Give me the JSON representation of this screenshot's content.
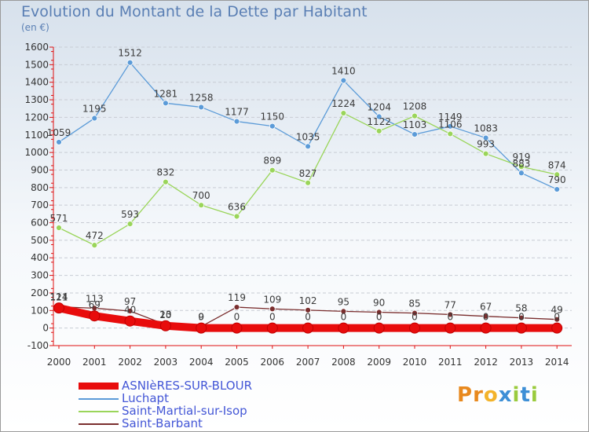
{
  "header": {
    "title": "Evolution du Montant de la Dette par Habitant",
    "subtitle": "(en €)"
  },
  "logo": {
    "letters": [
      "P",
      "r",
      "o",
      "x",
      "i",
      "t",
      "i"
    ],
    "colors": [
      "#e8891e",
      "#e8891e",
      "#f3b32a",
      "#3d8fd6",
      "#9acb3d",
      "#3d8fd6",
      "#9acb3d"
    ]
  },
  "chart_data": {
    "type": "line",
    "title": "Evolution du Montant de la Dette par Habitant",
    "ylabel": "(en €)",
    "xlabel": "",
    "ylim": [
      -100,
      1600
    ],
    "yticks": [
      -100,
      0,
      100,
      200,
      300,
      400,
      500,
      600,
      700,
      800,
      900,
      1000,
      1100,
      1200,
      1300,
      1400,
      1500,
      1600
    ],
    "categories": [
      "2000",
      "2001",
      "2002",
      "2003",
      "2004",
      "2005",
      "2006",
      "2007",
      "2008",
      "2009",
      "2010",
      "2011",
      "2012",
      "2013",
      "2014"
    ],
    "grid": "horizontal dashed",
    "legend_position": "bottom-left",
    "series": [
      {
        "name": "ASNIèRES-SUR-BLOUR",
        "values": [
          114,
          69,
          40,
          13,
          0,
          0,
          0,
          0,
          0,
          0,
          0,
          0,
          0,
          0,
          0
        ],
        "labels": [
          "114",
          "69",
          "40",
          "13",
          "0",
          "0",
          "0",
          "0",
          "0",
          "0",
          "0",
          "0",
          "0",
          "0",
          "0"
        ],
        "color": "#e80c0c"
      },
      {
        "name": "Luchapt",
        "values": [
          1059,
          1195,
          1512,
          1281,
          1258,
          1177,
          1150,
          1035,
          1410,
          1204,
          1103,
          1149,
          1083,
          883,
          790
        ],
        "labels": [
          "1059",
          "1195",
          "1512",
          "1281",
          "1258",
          "1177",
          "1150",
          "1035",
          "1410",
          "1204",
          "1103",
          "1149",
          "1083",
          "883",
          "790"
        ],
        "color": "#5b9bd8"
      },
      {
        "name": "Saint-Martial-sur-Isop",
        "values": [
          571,
          472,
          593,
          832,
          700,
          636,
          899,
          827,
          1224,
          1122,
          1208,
          1106,
          993,
          919,
          874
        ],
        "labels": [
          "571",
          "472",
          "593",
          "832",
          "700",
          "636",
          "899",
          "827",
          "1224",
          "1122",
          "1208",
          "1106",
          "993",
          "919",
          "874"
        ],
        "color": "#9ad55a"
      },
      {
        "name": "Saint-Barbant",
        "values": [
          121,
          113,
          97,
          20,
          9,
          119,
          109,
          102,
          95,
          90,
          85,
          77,
          67,
          58,
          49
        ],
        "labels": [
          "121",
          "113",
          "97",
          "20",
          "9",
          "119",
          "109",
          "102",
          "95",
          "90",
          "85",
          "77",
          "67",
          "58",
          "49"
        ],
        "color": "#7a2e2e"
      }
    ]
  }
}
